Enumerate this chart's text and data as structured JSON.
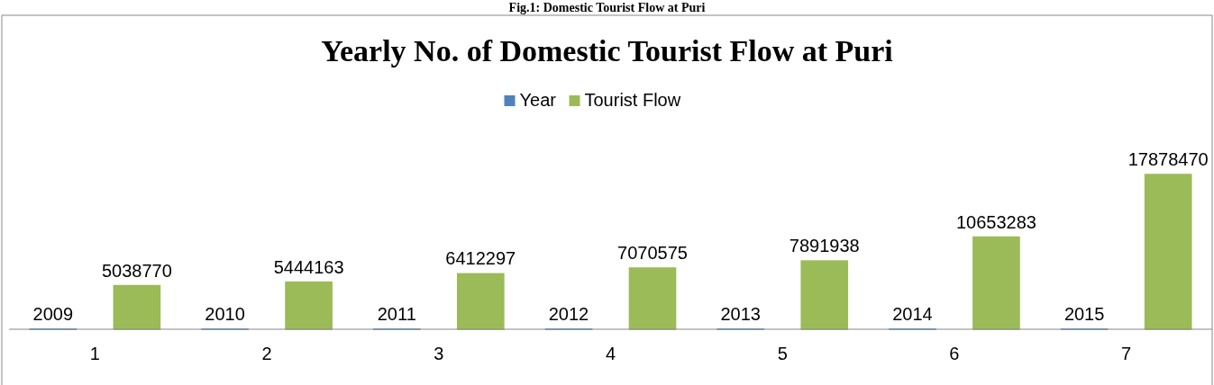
{
  "chart_data": {
    "type": "bar",
    "title": "Yearly No. of Domestic Tourist Flow at Puri",
    "annotations": [
      "Fig.1: Domestic Tourist Flow at Puri"
    ],
    "categories": [
      "1",
      "2",
      "3",
      "4",
      "5",
      "6",
      "7"
    ],
    "series": [
      {
        "name": "Year",
        "color": "#4f81bd",
        "values": [
          2009,
          2010,
          2011,
          2012,
          2013,
          2014,
          2015
        ]
      },
      {
        "name": "Tourist Flow",
        "color": "#9bbb59",
        "values": [
          5038770,
          5444163,
          6412297,
          7070575,
          7891938,
          10653283,
          17878470
        ]
      }
    ],
    "data_labels": true,
    "legend": "top"
  }
}
